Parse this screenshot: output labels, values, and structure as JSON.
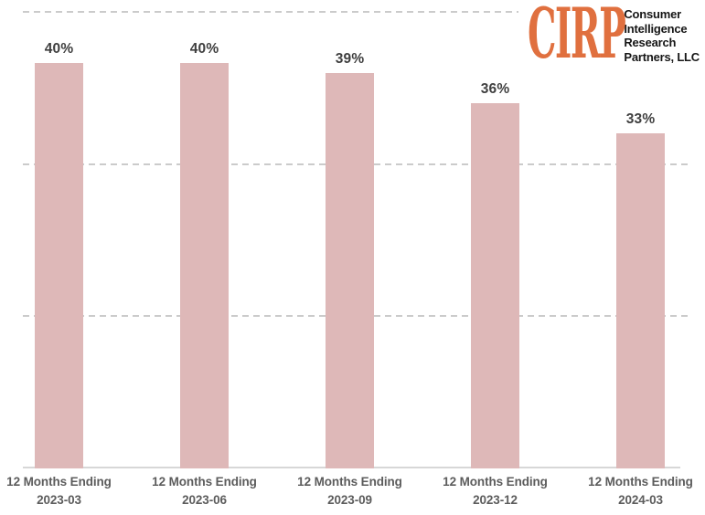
{
  "chart_data": {
    "type": "bar",
    "title": "",
    "categories": [
      {
        "line1": "12 Months Ending",
        "line2": "2023-03"
      },
      {
        "line1": "12 Months Ending",
        "line2": "2023-06"
      },
      {
        "line1": "12 Months Ending",
        "line2": "2023-09"
      },
      {
        "line1": "12 Months Ending",
        "line2": "2023-12"
      },
      {
        "line1": "12 Months Ending",
        "line2": "2024-03"
      }
    ],
    "values": [
      40,
      40,
      39,
      36,
      33
    ],
    "value_labels": [
      "40%",
      "40%",
      "39%",
      "36%",
      "33%"
    ],
    "xlabel": "",
    "ylabel": "",
    "ylim": [
      0,
      45
    ],
    "gridlines_pct": [
      15,
      30,
      45
    ],
    "grid": "horizontal-dashed",
    "legend": "none",
    "bar_color": "#DEB8B8"
  },
  "logo": {
    "acronym": "CIRP",
    "lines": [
      "Consumer",
      "Intelligence",
      "Research",
      "Partners, LLC"
    ],
    "accent_color": "#E0703F",
    "text_color": "#161616"
  },
  "colors": {
    "background": "#FFFFFF",
    "bar": "#DEB8B8",
    "value_label": "#3F3F3F",
    "category_label": "#5C5C5C",
    "gridline": "#CBCBCB",
    "axis_line": "#D7D7D7"
  }
}
